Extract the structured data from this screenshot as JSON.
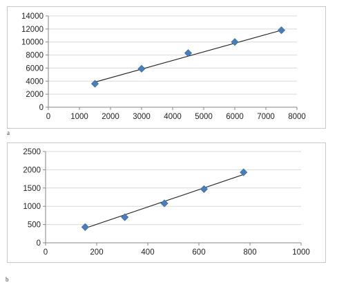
{
  "panels": [
    {
      "label": "a"
    },
    {
      "label": "b"
    }
  ],
  "chart_data": [
    {
      "type": "scatter",
      "title": "",
      "xlabel": "",
      "ylabel": "",
      "xlim": [
        0,
        8000
      ],
      "ylim": [
        0,
        14000
      ],
      "x_ticks": [
        0,
        1000,
        2000,
        3000,
        4000,
        5000,
        6000,
        7000,
        8000
      ],
      "y_ticks": [
        0,
        2000,
        4000,
        6000,
        8000,
        10000,
        12000,
        14000
      ],
      "grid": "horizontal",
      "legend": "none",
      "marker": "diamond",
      "marker_color": "#4a7ebb",
      "trendline": {
        "type": "linear",
        "from": [
          1500,
          3850
        ],
        "to": [
          7500,
          11800
        ]
      },
      "points": [
        {
          "x": 1500,
          "y": 3600
        },
        {
          "x": 3000,
          "y": 5900
        },
        {
          "x": 4500,
          "y": 8300
        },
        {
          "x": 6000,
          "y": 10000
        },
        {
          "x": 7500,
          "y": 11800
        }
      ]
    },
    {
      "type": "scatter",
      "title": "",
      "xlabel": "",
      "ylabel": "",
      "xlim": [
        0,
        1000
      ],
      "ylim": [
        0,
        2500
      ],
      "x_ticks": [
        0,
        200,
        400,
        600,
        800,
        1000
      ],
      "y_ticks": [
        0,
        500,
        1000,
        1500,
        2000,
        2500
      ],
      "grid": "horizontal",
      "legend": "none",
      "marker": "diamond",
      "marker_color": "#4a7ebb",
      "trendline": {
        "type": "linear",
        "from": [
          155,
          400
        ],
        "to": [
          775,
          1870
        ]
      },
      "points": [
        {
          "x": 155,
          "y": 430
        },
        {
          "x": 310,
          "y": 700
        },
        {
          "x": 465,
          "y": 1080
        },
        {
          "x": 620,
          "y": 1470
        },
        {
          "x": 775,
          "y": 1930
        }
      ]
    }
  ]
}
